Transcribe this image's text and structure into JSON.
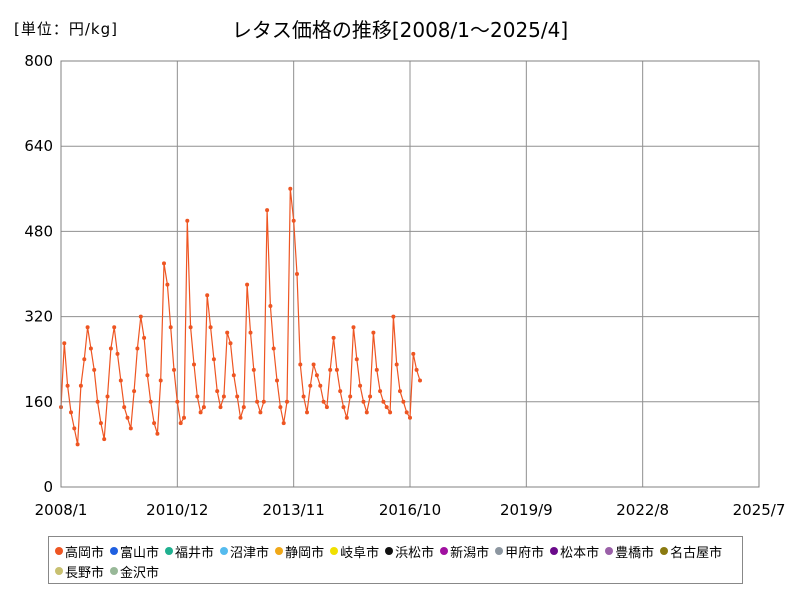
{
  "chart_data": {
    "type": "line",
    "title": "レタス価格の推移[2008/1～2025/4]",
    "unit": "[単位：円/kg]",
    "ylim": [
      0,
      800
    ],
    "y_ticks": [
      "0",
      "160",
      "320",
      "480",
      "640",
      "800"
    ],
    "x_ticks": [
      "2008/1",
      "2010/12",
      "2013/11",
      "2016/10",
      "2019/9",
      "2022/8",
      "2025/7"
    ],
    "grid": true,
    "legend_position": "bottom",
    "x_start": "2008/1",
    "x_end": "2025/7",
    "series": [
      {
        "name": "高岡市",
        "color": "#ee5522",
        "start": "2008/1",
        "values": [
          150,
          270,
          190,
          140,
          110,
          80,
          190,
          240,
          300,
          260,
          220,
          160,
          120,
          90,
          170,
          260,
          300,
          250,
          200,
          150,
          130,
          110,
          180,
          260,
          320,
          280,
          210,
          160,
          120,
          100,
          200,
          420,
          380,
          300,
          220,
          160,
          120,
          130,
          500,
          300,
          230,
          170,
          140,
          150,
          360,
          300,
          240,
          180,
          150,
          170,
          290,
          270,
          210,
          170,
          130,
          150,
          380,
          290,
          220,
          160,
          140,
          160,
          520,
          340,
          260,
          200,
          150,
          120,
          160,
          560,
          500,
          400,
          230,
          170,
          140,
          190,
          230,
          210,
          190,
          160,
          150,
          220,
          280,
          220,
          180,
          150,
          130,
          170,
          300,
          240,
          190,
          160,
          140,
          170,
          290,
          220,
          180,
          160,
          150,
          140,
          320,
          230,
          180,
          160,
          140,
          130,
          250,
          220,
          200
        ]
      }
    ]
  },
  "legend": [
    {
      "name": "高岡市",
      "color": "#ee5522"
    },
    {
      "name": "富山市",
      "color": "#1f5fe0"
    },
    {
      "name": "福井市",
      "color": "#20b090"
    },
    {
      "name": "沼津市",
      "color": "#55bbee"
    },
    {
      "name": "静岡市",
      "color": "#f0a818"
    },
    {
      "name": "岐阜市",
      "color": "#f0e000"
    },
    {
      "name": "浜松市",
      "color": "#111111"
    },
    {
      "name": "新潟市",
      "color": "#a010a0"
    },
    {
      "name": "甲府市",
      "color": "#8c96a0"
    },
    {
      "name": "松本市",
      "color": "#6a0a8a"
    },
    {
      "name": "豊橋市",
      "color": "#9a60a8"
    },
    {
      "name": "名古屋市",
      "color": "#8a7a10"
    },
    {
      "name": "長野市",
      "color": "#c8c070"
    },
    {
      "name": "金沢市",
      "color": "#98b898"
    }
  ]
}
